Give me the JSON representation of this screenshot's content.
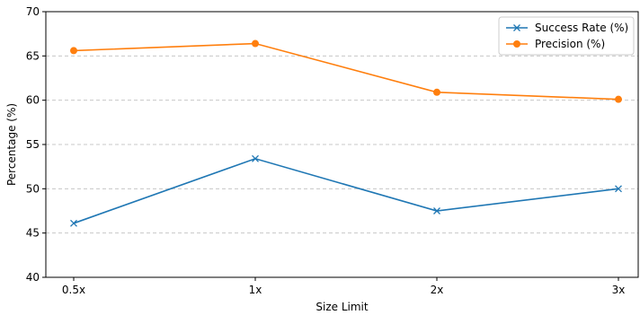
{
  "chart_data": {
    "type": "line",
    "categories": [
      "0.5x",
      "1x",
      "2x",
      "3x"
    ],
    "series": [
      {
        "name": "Success Rate (%)",
        "values": [
          46.1,
          53.4,
          47.5,
          50.0
        ],
        "color": "#1f77b4",
        "marker": "x"
      },
      {
        "name": "Precision (%)",
        "values": [
          65.6,
          66.4,
          60.9,
          60.1
        ],
        "color": "#ff7f0e",
        "marker": "circle"
      }
    ],
    "xlabel": "Size Limit",
    "ylabel": "Percentage (%)",
    "ylim": [
      40,
      70
    ],
    "yticks": [
      "40",
      "45",
      "50",
      "55",
      "60",
      "65",
      "70"
    ],
    "grid": "horizontal-dashed",
    "legend": "top-right"
  }
}
